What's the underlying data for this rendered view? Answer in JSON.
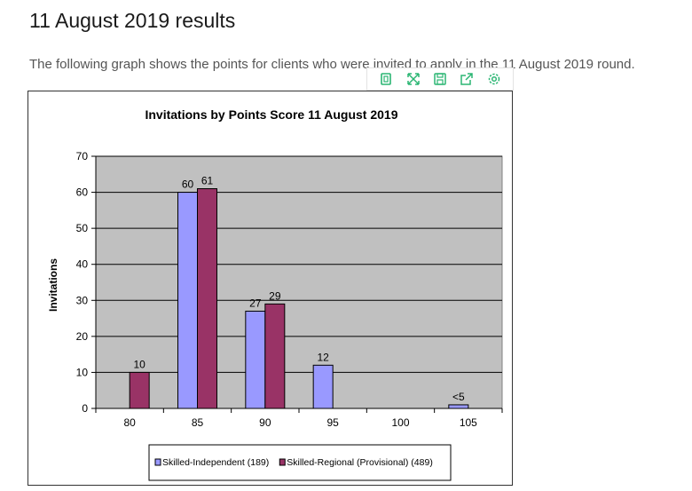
{
  "page": {
    "title": "11 August 2019 results",
    "intro": "The following graph shows the points for clients who were invited to apply in the 11 August 2019 round."
  },
  "toolbar": {
    "icons": [
      "copy-icon",
      "expand-icon",
      "save-icon",
      "share-icon",
      "settings-icon"
    ],
    "accent": "#2bb673"
  },
  "chart_data": {
    "type": "bar",
    "title": "Invitations by Points Score 11 August 2019",
    "xlabel": "",
    "ylabel": "Invitations",
    "categories": [
      "80",
      "85",
      "90",
      "95",
      "100",
      "105"
    ],
    "series": [
      {
        "name": "Skilled-Independent (189)",
        "color": "#9999ff",
        "values": [
          null,
          60,
          27,
          12,
          null,
          1
        ],
        "labels": [
          "",
          "60",
          "27",
          "12",
          "",
          "<5"
        ]
      },
      {
        "name": "Skilled-Regional (Provisional) (489)",
        "color": "#993366",
        "values": [
          10,
          61,
          29,
          null,
          null,
          null
        ],
        "labels": [
          "10",
          "61",
          "29",
          "",
          "",
          ""
        ]
      }
    ],
    "ylim": [
      0,
      70
    ],
    "yticks": [
      0,
      10,
      20,
      30,
      40,
      50,
      60,
      70
    ],
    "grid": true,
    "plot_background": "#c0c0c0",
    "legend_position": "bottom"
  }
}
